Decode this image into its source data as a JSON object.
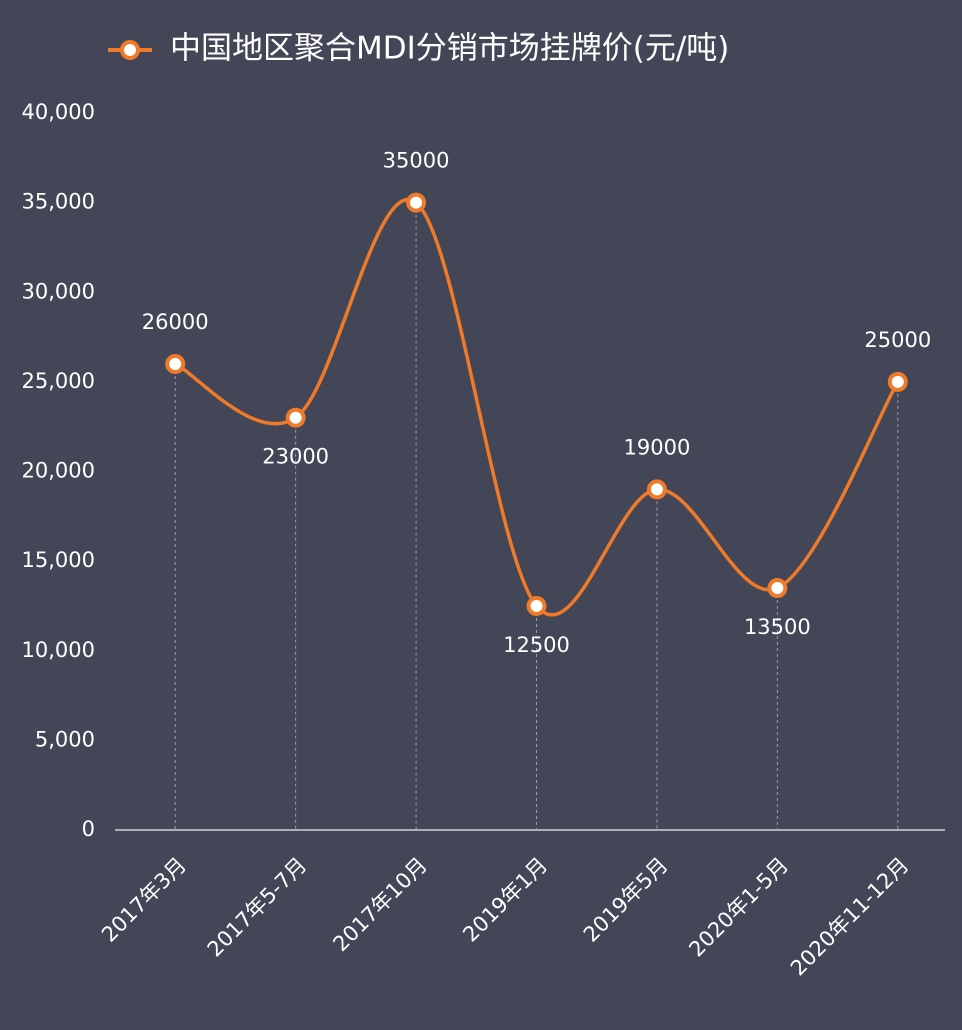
{
  "chart_data": {
    "type": "line",
    "categories": [
      "2017年3月",
      "2017年5-7月",
      "2017年10月",
      "2019年1月",
      "2019年5月",
      "2020年1-5月",
      "2020年11-12月"
    ],
    "series": [
      {
        "name": "中国地区聚合MDI分销市场挂牌价(元/吨)",
        "color": "#ef7a2a",
        "values": [
          26000,
          23000,
          35000,
          12500,
          19000,
          13500,
          25000
        ]
      }
    ],
    "ylim": [
      0,
      40000
    ],
    "yticks": [
      0,
      {
        "value": 5000,
        "label": "5,000"
      },
      {
        "value": 10000,
        "label": "10,000"
      },
      {
        "value": 15000,
        "label": "15,000"
      },
      {
        "value": 20000,
        "label": "20,000"
      },
      {
        "value": 25000,
        "label": "25,000"
      },
      {
        "value": 30000,
        "label": "30,000"
      },
      {
        "value": 35000,
        "label": "35,000"
      },
      {
        "value": 40000,
        "label": "40,000"
      }
    ],
    "grid": false,
    "smooth": true,
    "legend": "top"
  }
}
